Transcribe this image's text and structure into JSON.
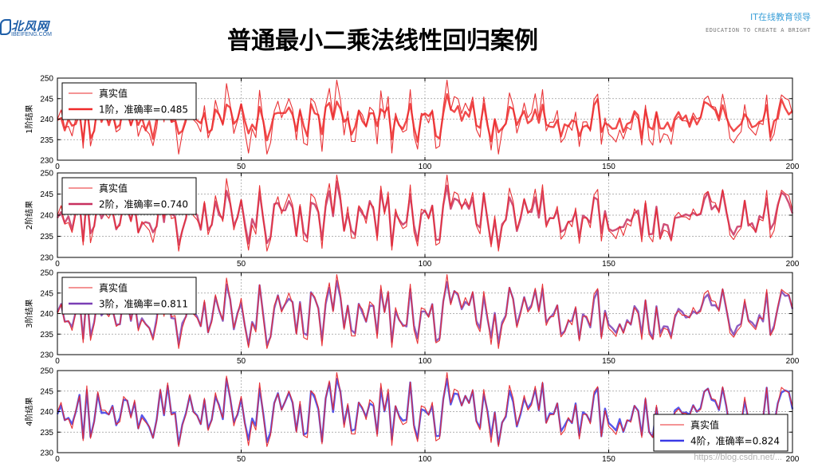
{
  "header": {
    "logo_text": "北风网",
    "logo_sub": "IBEIFENG.COM",
    "tagline": "IT在线教育领导",
    "tagline_en": "EDUCATION TO CREATE A BRIGHT",
    "title": "普通最小二乘法线性回归案例"
  },
  "watermark": "https://blog.csdn.net/...",
  "colors": {
    "true_line": "#e8282b",
    "order1": "#ef2a2a",
    "order2": "#c8305f",
    "order3": "#7a3fb5",
    "order4": "#3a3ae6",
    "grid": "#9a9a9a"
  },
  "chart_data": [
    {
      "type": "line",
      "ylabel": "1阶结果",
      "xlim": [
        0,
        200
      ],
      "ylim": [
        230,
        250
      ],
      "xticks": [
        0,
        50,
        100,
        150,
        200
      ],
      "yticks": [
        230,
        235,
        240,
        245,
        250
      ],
      "grid": true,
      "legend_position": "upper-left",
      "series": [
        {
          "name": "真实值",
          "color": "#e8282b",
          "width": 1.1
        },
        {
          "name": "1阶，准确率=0.485",
          "color": "#ef2a2a",
          "width": 2.4
        }
      ]
    },
    {
      "type": "line",
      "ylabel": "2阶结果",
      "xlim": [
        0,
        200
      ],
      "ylim": [
        230,
        250
      ],
      "xticks": [
        0,
        50,
        100,
        150,
        200
      ],
      "yticks": [
        230,
        235,
        240,
        245,
        250
      ],
      "grid": true,
      "legend_position": "upper-left",
      "series": [
        {
          "name": "真实值",
          "color": "#e8282b",
          "width": 1.1
        },
        {
          "name": "2阶，准确率=0.740",
          "color": "#c8305f",
          "width": 2.4
        }
      ]
    },
    {
      "type": "line",
      "ylabel": "3阶结果",
      "xlim": [
        0,
        200
      ],
      "ylim": [
        230,
        250
      ],
      "xticks": [
        0,
        50,
        100,
        150,
        200
      ],
      "yticks": [
        230,
        235,
        240,
        245,
        250
      ],
      "grid": true,
      "legend_position": "upper-left",
      "series": [
        {
          "name": "真实值",
          "color": "#e8282b",
          "width": 1.1
        },
        {
          "name": "3阶，准确率=0.811",
          "color": "#7a3fb5",
          "width": 2.4
        }
      ]
    },
    {
      "type": "line",
      "ylabel": "4阶结果",
      "xlim": [
        0,
        200
      ],
      "ylim": [
        230,
        250
      ],
      "xticks": [
        0,
        50,
        100,
        150,
        200
      ],
      "yticks": [
        230,
        235,
        240,
        245,
        250
      ],
      "grid": true,
      "legend_position": "lower-right",
      "series": [
        {
          "name": "真实值",
          "color": "#e8282b",
          "width": 1.1
        },
        {
          "name": "4阶，准确率=0.824",
          "color": "#3a3ae6",
          "width": 2.4
        }
      ]
    }
  ]
}
